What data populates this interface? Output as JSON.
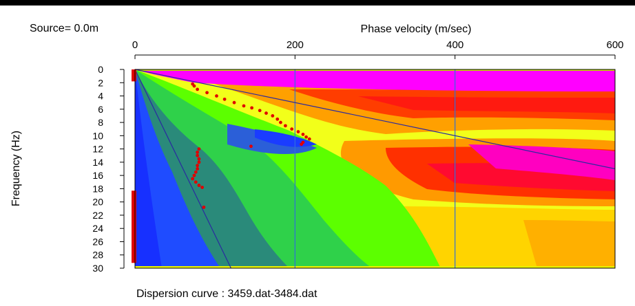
{
  "chart_data": {
    "type": "heatmap",
    "source_label": "Source=  0.0m",
    "x_axis": {
      "label": "Phase velocity (m/sec)",
      "range": [
        0,
        600
      ],
      "ticks": [
        "0",
        "200",
        "400",
        "600"
      ],
      "position": "top"
    },
    "y_axis": {
      "label": "Frequency (Hz)",
      "range": [
        0,
        30
      ],
      "ticks": [
        "0",
        "2",
        "4",
        "6",
        "8",
        "10",
        "12",
        "14",
        "16",
        "18",
        "20",
        "22",
        "24",
        "26",
        "28",
        "30"
      ],
      "inverted": true
    },
    "caption": "Dispersion curve : 3459.dat-3484.dat",
    "grid": "vertical lines at 200 and 400",
    "colors": {
      "low": "#1a3cff",
      "mid_low": "#2fbf3f",
      "mid": "#4dff00",
      "mid_high": "#ffff00",
      "high": "#ff2a00",
      "max": "#ff00ff",
      "picks": "#e00000",
      "guide_lines": "#2a2aa0",
      "grid": "#2f6fdc"
    },
    "dispersion_picks": [
      {
        "x": 72,
        "y": 2.2
      },
      {
        "x": 74,
        "y": 2.5
      },
      {
        "x": 78,
        "y": 3.0
      },
      {
        "x": 90,
        "y": 3.5
      },
      {
        "x": 102,
        "y": 4.0
      },
      {
        "x": 112,
        "y": 4.5
      },
      {
        "x": 124,
        "y": 5.0
      },
      {
        "x": 136,
        "y": 5.5
      },
      {
        "x": 146,
        "y": 5.8
      },
      {
        "x": 156,
        "y": 6.2
      },
      {
        "x": 164,
        "y": 6.6
      },
      {
        "x": 172,
        "y": 7.0
      },
      {
        "x": 178,
        "y": 7.5
      },
      {
        "x": 182,
        "y": 8.0
      },
      {
        "x": 188,
        "y": 8.5
      },
      {
        "x": 196,
        "y": 9.0
      },
      {
        "x": 204,
        "y": 9.4
      },
      {
        "x": 210,
        "y": 9.8
      },
      {
        "x": 214,
        "y": 10.2
      },
      {
        "x": 218,
        "y": 10.5
      },
      {
        "x": 210,
        "y": 11.0
      },
      {
        "x": 208,
        "y": 11.3
      },
      {
        "x": 145,
        "y": 11.6
      },
      {
        "x": 80,
        "y": 12.0
      },
      {
        "x": 78,
        "y": 12.5
      },
      {
        "x": 78,
        "y": 13.0
      },
      {
        "x": 80,
        "y": 13.5
      },
      {
        "x": 80,
        "y": 14.0
      },
      {
        "x": 78,
        "y": 14.5
      },
      {
        "x": 78,
        "y": 15.0
      },
      {
        "x": 76,
        "y": 15.5
      },
      {
        "x": 74,
        "y": 16.0
      },
      {
        "x": 72,
        "y": 16.5
      },
      {
        "x": 76,
        "y": 17.0
      },
      {
        "x": 80,
        "y": 17.5
      },
      {
        "x": 84,
        "y": 17.8
      },
      {
        "x": 86,
        "y": 20.8
      }
    ],
    "guide_lines": [
      {
        "from": {
          "x": 0,
          "y": 0
        },
        "to": {
          "x": 600,
          "y": 15.0
        }
      },
      {
        "from": {
          "x": 0,
          "y": 0
        },
        "to": {
          "x": 120,
          "y": 30.0
        }
      }
    ],
    "edge_marks": [
      {
        "x": 0,
        "y_from": 0,
        "y_to": 1.8
      },
      {
        "x": 0,
        "y_from": 18.3,
        "y_to": 29.2
      }
    ]
  }
}
